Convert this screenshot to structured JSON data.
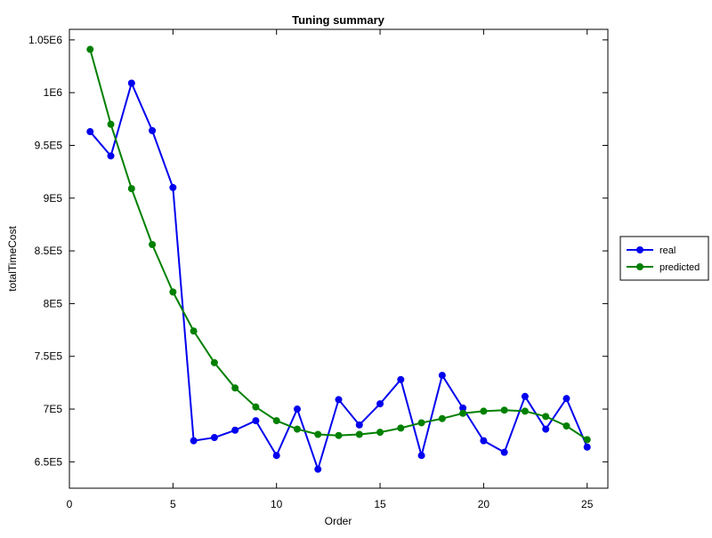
{
  "chart_data": {
    "type": "line",
    "title": "Tuning summary",
    "xlabel": "Order",
    "ylabel": "totalTimeCost",
    "xlim": [
      0,
      26
    ],
    "ylim": [
      625000,
      1060000
    ],
    "xticks": [
      0,
      5,
      10,
      15,
      20,
      25
    ],
    "xtick_labels": [
      "0",
      "5",
      "10",
      "15",
      "20",
      "25"
    ],
    "yticks": [
      650000,
      700000,
      750000,
      800000,
      850000,
      900000,
      950000,
      1000000,
      1050000
    ],
    "ytick_labels": [
      "6.5E5",
      "7E5",
      "7.5E5",
      "8E5",
      "8.5E5",
      "9E5",
      "9.5E5",
      "1E6",
      "1.05E6"
    ],
    "grid": false,
    "legend_position": "right",
    "x": [
      1,
      2,
      3,
      4,
      5,
      6,
      7,
      8,
      9,
      10,
      11,
      12,
      13,
      14,
      15,
      16,
      17,
      18,
      19,
      20,
      21,
      22,
      23,
      24,
      25
    ],
    "series": [
      {
        "name": "real",
        "color": "#0000ee",
        "values": [
          963000,
          940000,
          1009000,
          964000,
          910000,
          670000,
          673000,
          680000,
          689000,
          656000,
          700000,
          643000,
          709000,
          685000,
          705000,
          728000,
          656000,
          732000,
          701000,
          670000,
          659000,
          712000,
          681000,
          710000,
          664000
        ]
      },
      {
        "name": "predicted",
        "color": "#008000",
        "values": [
          1041000,
          970000,
          909000,
          856000,
          811000,
          774000,
          744000,
          720000,
          702000,
          689000,
          681000,
          676000,
          675000,
          676000,
          678000,
          682000,
          687000,
          691000,
          696000,
          698000,
          699000,
          698000,
          693000,
          684000,
          671000
        ]
      }
    ]
  }
}
